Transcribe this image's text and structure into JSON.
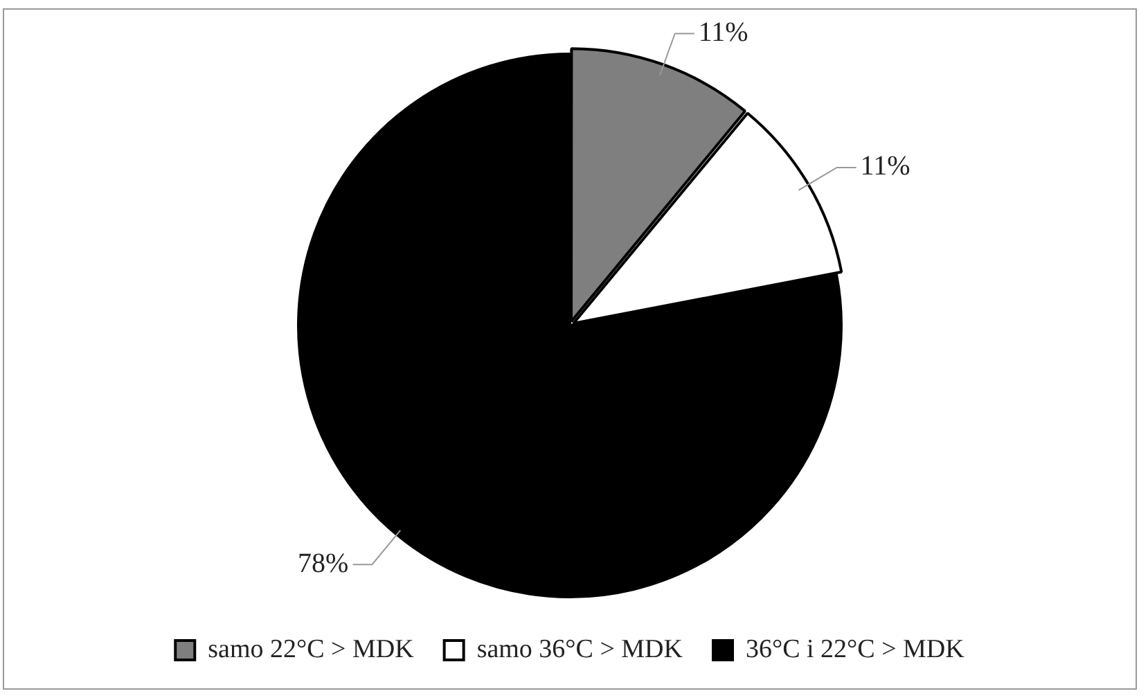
{
  "chart_data": {
    "type": "pie",
    "categories": [
      "samo 22°C > MDK",
      "samo 36°C > MDK",
      "36°C i 22°C > MDK"
    ],
    "values": [
      11,
      11,
      78
    ],
    "colors": [
      "#7f7f7f",
      "#ffffff",
      "#000000"
    ],
    "value_labels": [
      "11%",
      "11%",
      "78%"
    ],
    "legend": "bottom"
  }
}
